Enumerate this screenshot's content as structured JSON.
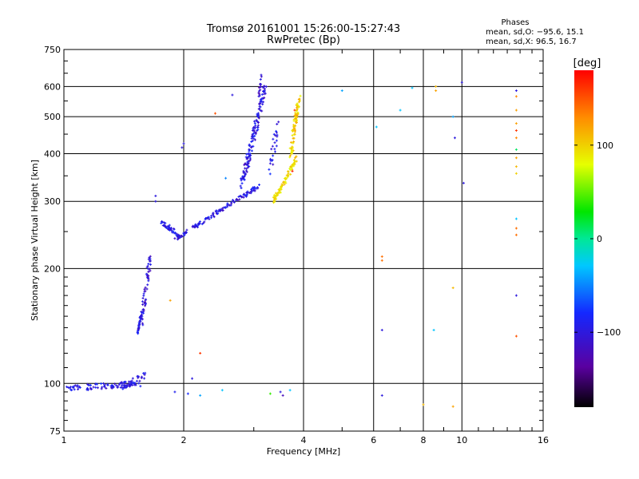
{
  "chart_data": {
    "type": "scatter",
    "title": "Tromsø 20161001 15:26:00-15:27:43",
    "subtitle": "RwPretec (Bp)",
    "xlabel": "Frequency [MHz]",
    "ylabel": "Stationary phase Virtual Height [km]",
    "x_scale": "log",
    "y_scale": "log",
    "xlim": [
      1,
      16
    ],
    "ylim": [
      75,
      750
    ],
    "x_ticks": [
      1,
      2,
      4,
      6,
      8,
      10,
      16
    ],
    "x_tick_labels": [
      "1",
      "2",
      "4",
      "6",
      "8",
      "10",
      "16"
    ],
    "y_ticks": [
      75,
      100,
      200,
      300,
      400,
      500,
      600,
      750
    ],
    "y_tick_labels": [
      "75",
      "100",
      "200",
      "300",
      "400",
      "500",
      "600",
      "750"
    ],
    "grid": true,
    "phases_box": {
      "title": "Phases",
      "line_o": "mean, sd,O: −95.6, 15.1",
      "line_x": "mean, sd,X:  96.5, 16.7"
    },
    "colorbar": {
      "label": "[deg]",
      "range": [
        -180,
        180
      ],
      "ticks": [
        100,
        0,
        -100
      ],
      "tick_labels": [
        "100",
        "0",
        "−100"
      ]
    },
    "series": [
      {
        "segments": [
          {
            "fmin": 1.02,
            "fmax": 1.55,
            "h": [
              97,
              100
            ],
            "n": 90,
            "spread": 0.035,
            "phase": -95
          },
          {
            "fmin": 1.4,
            "fmax": 1.6,
            "h": [
              98,
              105
            ],
            "n": 30,
            "spread": 0.04,
            "phase": -100
          },
          {
            "fmin": 1.53,
            "fmax": 1.56,
            "h": [
              135,
              150
            ],
            "n": 30,
            "spread": 0.015,
            "phase": -100
          },
          {
            "fmin": 1.56,
            "fmax": 1.65,
            "h": [
              140,
              215
            ],
            "n": 55,
            "spread": 0.04,
            "phase": -105
          },
          {
            "fmin": 1.75,
            "fmax": 1.95,
            "h": [
              265,
              245
            ],
            "n": 40,
            "spread": 0.03,
            "phase": -95
          },
          {
            "fmin": 1.9,
            "fmax": 3.1,
            "h": [
              238,
              330
            ],
            "n": 130,
            "spread": 0.025,
            "phase": -100
          },
          {
            "fmin": 2.8,
            "fmax": 3.2,
            "h": [
              330,
              600
            ],
            "n": 140,
            "spread": 0.05,
            "phase": -100
          },
          {
            "fmin": 3.08,
            "fmax": 3.15,
            "h": [
              560,
              650
            ],
            "n": 15,
            "spread": 0.02,
            "phase": -110
          },
          {
            "fmin": 3.3,
            "fmax": 3.45,
            "h": [
              350,
              500
            ],
            "n": 25,
            "spread": 0.05,
            "phase": -95
          }
        ],
        "extra_points": [
          {
            "x": 1.7,
            "y": 310,
            "phase": -100
          },
          {
            "x": 1.7,
            "y": 300,
            "phase": -100
          },
          {
            "x": 1.85,
            "y": 165,
            "phase": 120
          },
          {
            "x": 1.98,
            "y": 415,
            "phase": -100
          },
          {
            "x": 2.0,
            "y": 425,
            "phase": -100
          },
          {
            "x": 2.1,
            "y": 103,
            "phase": -100
          },
          {
            "x": 2.2,
            "y": 120,
            "phase": 160
          },
          {
            "x": 2.4,
            "y": 510,
            "phase": 150
          },
          {
            "x": 2.65,
            "y": 570,
            "phase": -100
          },
          {
            "x": 2.55,
            "y": 345,
            "phase": -50
          },
          {
            "x": 1.9,
            "y": 95,
            "phase": -90
          },
          {
            "x": 2.05,
            "y": 94,
            "phase": -80
          },
          {
            "x": 2.2,
            "y": 93,
            "phase": -40
          },
          {
            "x": 2.5,
            "y": 96,
            "phase": -30
          },
          {
            "x": 3.3,
            "y": 94,
            "phase": 40
          },
          {
            "x": 3.5,
            "y": 95,
            "phase": -100
          },
          {
            "x": 3.55,
            "y": 93,
            "phase": -120
          },
          {
            "x": 3.7,
            "y": 96,
            "phase": -30
          },
          {
            "x": 6.3,
            "y": 93,
            "phase": -100
          },
          {
            "x": 6.3,
            "y": 138,
            "phase": -100
          },
          {
            "x": 6.3,
            "y": 215,
            "phase": 140
          },
          {
            "x": 6.3,
            "y": 210,
            "phase": 140
          },
          {
            "x": 6.1,
            "y": 470,
            "phase": -30
          },
          {
            "x": 5.0,
            "y": 585,
            "phase": -40
          },
          {
            "x": 7.0,
            "y": 520,
            "phase": -30
          },
          {
            "x": 7.5,
            "y": 595,
            "phase": -30
          },
          {
            "x": 8.0,
            "y": 88,
            "phase": 110
          },
          {
            "x": 8.5,
            "y": 138,
            "phase": -30
          },
          {
            "x": 8.6,
            "y": 600,
            "phase": 110
          },
          {
            "x": 8.6,
            "y": 585,
            "phase": 120
          },
          {
            "x": 9.5,
            "y": 87,
            "phase": 120
          },
          {
            "x": 9.5,
            "y": 178,
            "phase": 110
          },
          {
            "x": 9.6,
            "y": 440,
            "phase": -100
          },
          {
            "x": 9.5,
            "y": 500,
            "phase": -40
          },
          {
            "x": 10.1,
            "y": 335,
            "phase": -100
          },
          {
            "x": 10.0,
            "y": 615,
            "phase": -100
          },
          {
            "x": 13.7,
            "y": 585,
            "phase": -100
          },
          {
            "x": 13.7,
            "y": 565,
            "phase": 130
          },
          {
            "x": 13.7,
            "y": 520,
            "phase": 120
          },
          {
            "x": 13.7,
            "y": 480,
            "phase": 120
          },
          {
            "x": 13.7,
            "y": 460,
            "phase": 160
          },
          {
            "x": 13.7,
            "y": 440,
            "phase": 130
          },
          {
            "x": 13.7,
            "y": 410,
            "phase": 10
          },
          {
            "x": 13.7,
            "y": 390,
            "phase": 120
          },
          {
            "x": 13.7,
            "y": 370,
            "phase": 110
          },
          {
            "x": 13.7,
            "y": 355,
            "phase": 100
          },
          {
            "x": 13.7,
            "y": 270,
            "phase": -30
          },
          {
            "x": 13.7,
            "y": 255,
            "phase": 140
          },
          {
            "x": 13.7,
            "y": 245,
            "phase": 140
          },
          {
            "x": 13.7,
            "y": 170,
            "phase": -100
          },
          {
            "x": 13.7,
            "y": 133,
            "phase": 150
          }
        ]
      },
      {
        "segments": [
          {
            "fmin": 3.35,
            "fmax": 3.85,
            "h": [
              298,
              390
            ],
            "n": 80,
            "spread": 0.03,
            "phase": 95
          },
          {
            "fmin": 3.7,
            "fmax": 3.9,
            "h": [
              390,
              560
            ],
            "n": 80,
            "spread": 0.04,
            "phase": 100
          }
        ],
        "extra_points": [
          {
            "x": 3.75,
            "y": 360,
            "phase": 170
          },
          {
            "x": 3.8,
            "y": 520,
            "phase": 160
          }
        ]
      }
    ]
  }
}
